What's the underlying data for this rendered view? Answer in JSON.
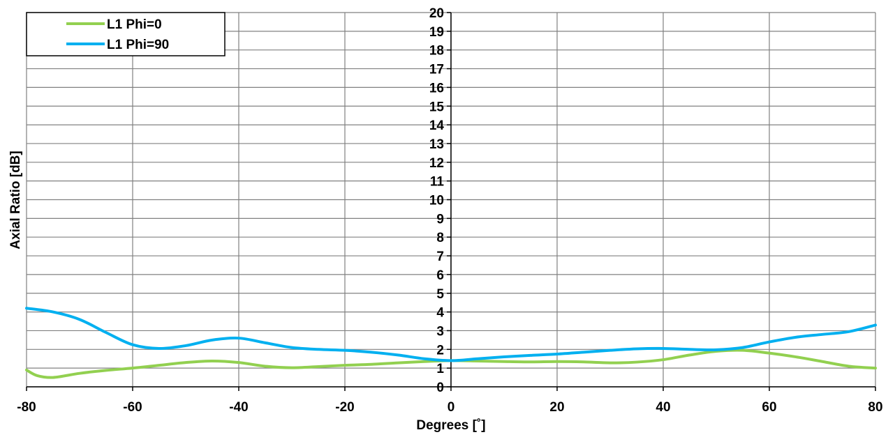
{
  "chart_data": {
    "type": "line",
    "xlabel": "Degrees [˚]",
    "ylabel": "Axial Ratio [dB]",
    "xlim": [
      -80,
      80
    ],
    "ylim": [
      0,
      20
    ],
    "xticks": [
      -80,
      -60,
      -40,
      -20,
      0,
      20,
      40,
      60,
      80
    ],
    "yticks": [
      0,
      1,
      2,
      3,
      4,
      5,
      6,
      7,
      8,
      9,
      10,
      11,
      12,
      13,
      14,
      15,
      16,
      17,
      18,
      19,
      20
    ],
    "grid": true,
    "legend_position": "top-left",
    "series": [
      {
        "name": "L1 Phi=0",
        "color": "#92d050",
        "x": [
          -80,
          -78,
          -75,
          -70,
          -65,
          -60,
          -55,
          -50,
          -45,
          -40,
          -35,
          -30,
          -25,
          -20,
          -15,
          -10,
          -5,
          0,
          5,
          10,
          15,
          20,
          25,
          30,
          35,
          40,
          45,
          50,
          55,
          60,
          65,
          70,
          75,
          80
        ],
        "y": [
          0.9,
          0.6,
          0.5,
          0.72,
          0.88,
          1.0,
          1.15,
          1.3,
          1.38,
          1.3,
          1.1,
          1.02,
          1.08,
          1.15,
          1.2,
          1.28,
          1.35,
          1.4,
          1.38,
          1.35,
          1.33,
          1.35,
          1.33,
          1.28,
          1.32,
          1.45,
          1.7,
          1.9,
          1.95,
          1.8,
          1.6,
          1.35,
          1.1,
          1.0
        ]
      },
      {
        "name": "L1 Phi=90",
        "color": "#00b0f0",
        "x": [
          -80,
          -75,
          -70,
          -65,
          -60,
          -55,
          -50,
          -45,
          -40,
          -35,
          -30,
          -25,
          -20,
          -15,
          -10,
          -5,
          0,
          5,
          10,
          15,
          20,
          25,
          30,
          35,
          40,
          45,
          50,
          55,
          60,
          65,
          70,
          75,
          80
        ],
        "y": [
          4.2,
          4.0,
          3.6,
          2.9,
          2.25,
          2.05,
          2.2,
          2.5,
          2.6,
          2.35,
          2.1,
          2.0,
          1.95,
          1.85,
          1.7,
          1.5,
          1.4,
          1.5,
          1.6,
          1.68,
          1.75,
          1.85,
          1.95,
          2.03,
          2.05,
          2.0,
          1.98,
          2.1,
          2.4,
          2.65,
          2.8,
          2.95,
          3.3
        ]
      }
    ]
  }
}
